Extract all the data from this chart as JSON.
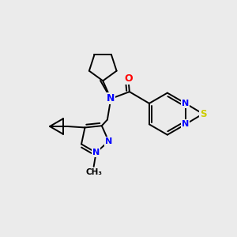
{
  "background_color": "#ebebeb",
  "atom_colors": {
    "N": "#0000ff",
    "O": "#ff0000",
    "S": "#cccc00",
    "C": "#000000"
  },
  "bond_color": "#000000",
  "bond_width": 1.4,
  "fig_size": [
    3.0,
    3.0
  ],
  "dpi": 100
}
